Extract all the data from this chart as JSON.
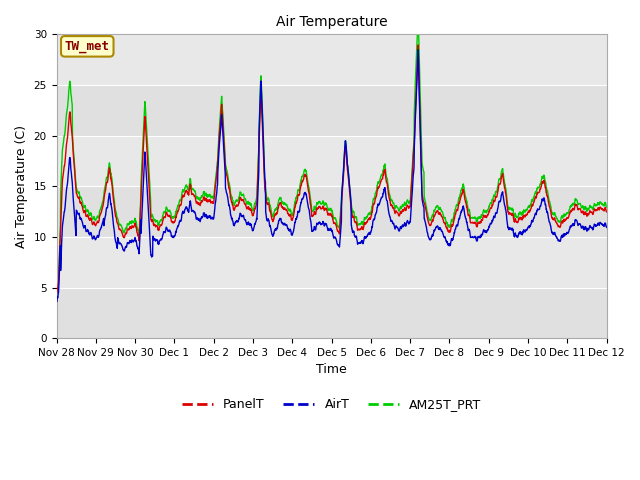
{
  "title": "Air Temperature",
  "ylabel": "Air Temperature (C)",
  "xlabel": "Time",
  "ylim": [
    0,
    30
  ],
  "xlim": [
    0,
    14
  ],
  "bg_color": "#e8e8e8",
  "fig_color": "#ffffff",
  "annotation_text": "TW_met",
  "annotation_bg": "#ffffcc",
  "annotation_border": "#aa8800",
  "annotation_text_color": "#880000",
  "legend_labels": [
    "PanelT",
    "AirT",
    "AM25T_PRT"
  ],
  "line_colors": [
    "#dd0000",
    "#0000cc",
    "#00cc00"
  ],
  "yticks": [
    0,
    5,
    10,
    15,
    20,
    25,
    30
  ],
  "tick_labels": [
    "Nov 28",
    "Nov 29",
    "Nov 30",
    "Dec 1",
    "Dec 2",
    "Dec 3",
    "Dec 4",
    "Dec 5",
    "Dec 6",
    "Dec 7",
    "Dec 8",
    "Dec 9",
    "Dec 10",
    "Dec 11",
    "Dec 12"
  ],
  "title_fontsize": 10,
  "axis_fontsize": 9,
  "tick_fontsize": 7.5,
  "legend_fontsize": 9,
  "linewidth": 1.0,
  "grid_color": "#ffffff",
  "band_colors": [
    "#e0e0e0",
    "#e8e8e8"
  ]
}
